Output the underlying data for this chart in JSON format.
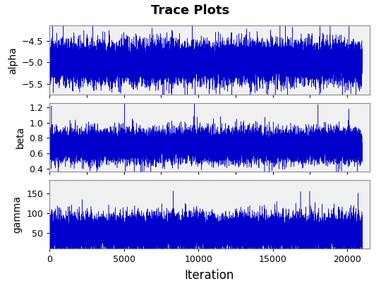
{
  "title": "Trace Plots",
  "xlabel": "Iteration",
  "subplots": [
    {
      "ylabel": "alpha",
      "ylim": [
        -5.75,
        -4.15
      ],
      "yticks": [
        -5.5,
        -5.0,
        -4.5
      ],
      "mean": -5.0,
      "std": 0.22,
      "low_autocorr": true,
      "seed": 42
    },
    {
      "ylabel": "beta",
      "ylim": [
        0.36,
        1.26
      ],
      "yticks": [
        0.4,
        0.6,
        0.8,
        1.0,
        1.2
      ],
      "mean": 0.7,
      "std": 0.1,
      "low_autocorr": true,
      "seed": 43
    },
    {
      "ylabel": "gamma",
      "ylim": [
        10,
        185
      ],
      "yticks": [
        50,
        100,
        150
      ],
      "mean": 50,
      "std": 22,
      "low_autocorr": true,
      "seed": 44
    }
  ],
  "n_samples": 21000,
  "xlim": [
    0,
    21500
  ],
  "xticks": [
    0,
    5000,
    10000,
    15000,
    20000
  ],
  "line_color": "#0000CD",
  "bg_color": "#FFFFFF",
  "plot_bg_color": "#F0F0F0",
  "title_fontsize": 13,
  "label_fontsize": 10,
  "tick_fontsize": 9,
  "linewidth": 0.35
}
